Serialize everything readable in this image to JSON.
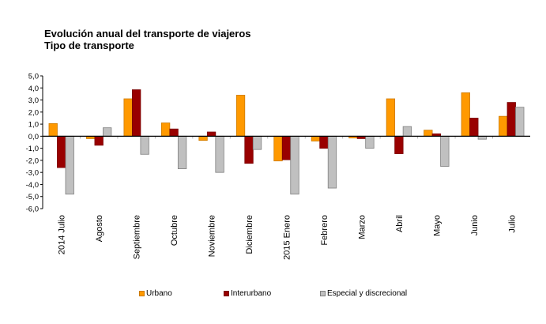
{
  "chart_data": {
    "type": "bar",
    "title": "Evolución anual del transporte de viajeros",
    "subtitle": "Tipo de transporte",
    "xlabel": "",
    "ylabel": "",
    "ylim": [
      -6.0,
      5.0
    ],
    "yticks": [
      "5,0",
      "4,0",
      "3,0",
      "2,0",
      "1,0",
      "0,0",
      "-1,0",
      "-2,0",
      "-3,0",
      "-4,0",
      "-5,0",
      "-6,0"
    ],
    "ytick_values": [
      5,
      4,
      3,
      2,
      1,
      0,
      -1,
      -2,
      -3,
      -4,
      -5,
      -6
    ],
    "grid": false,
    "legend_position": "bottom",
    "categories": [
      "2014  Julio",
      "Agosto",
      "Septiembre",
      "Octubre",
      "Noviembre",
      "Diciembre",
      "2015  Enero",
      "Febrero",
      "Marzo",
      "Abril",
      "Mayo",
      "Junio",
      "Julio"
    ],
    "series": [
      {
        "name": "Urbano",
        "color": "#FF9900",
        "border": "#CC7A00",
        "values": [
          1.05,
          -0.2,
          3.1,
          1.1,
          -0.35,
          3.4,
          -2.05,
          -0.4,
          -0.15,
          3.1,
          0.5,
          3.6,
          1.65
        ]
      },
      {
        "name": "Interurbano",
        "color": "#990000",
        "border": "#7A0000",
        "values": [
          -2.6,
          -0.75,
          3.85,
          0.6,
          0.35,
          -2.25,
          -1.95,
          -1.0,
          -0.2,
          -1.45,
          0.2,
          1.5,
          2.8
        ]
      },
      {
        "name": "Especial y discrecional",
        "color": "#C0C0C0",
        "border": "#808080",
        "values": [
          -4.8,
          0.7,
          -1.5,
          -2.7,
          -3.0,
          -1.1,
          -4.8,
          -4.3,
          -1.0,
          0.8,
          -2.5,
          -0.25,
          2.4
        ]
      }
    ]
  }
}
